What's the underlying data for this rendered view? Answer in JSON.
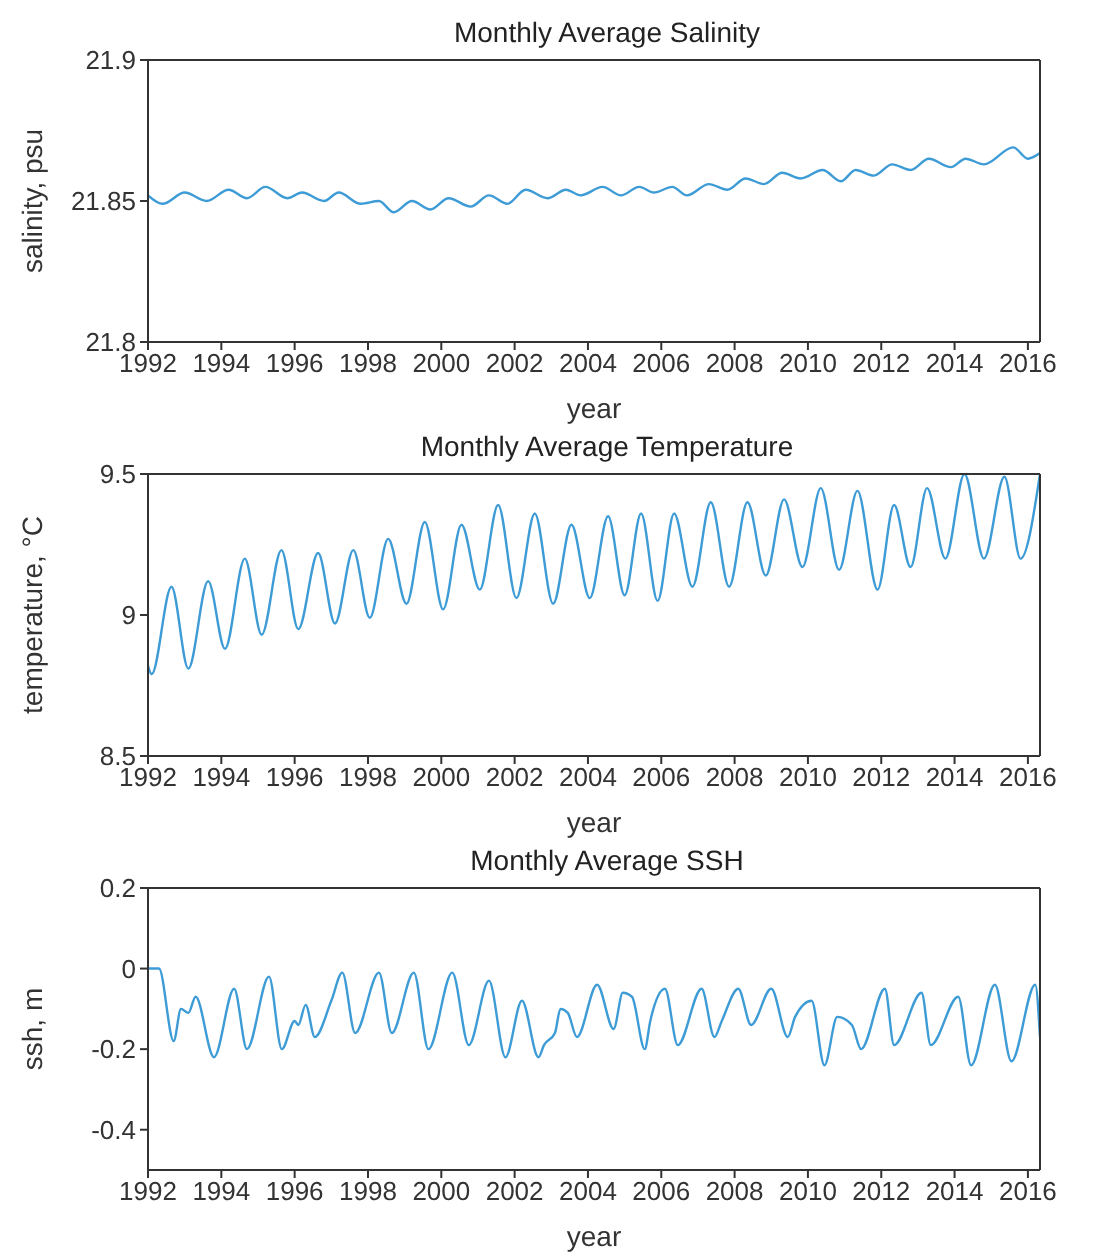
{
  "chart_data": [
    {
      "type": "line",
      "title": "Monthly Average Salinity",
      "xlabel": "year",
      "ylabel": "salinity, psu",
      "xlim": [
        1992,
        2016.33
      ],
      "xticks": [
        1992,
        1994,
        1996,
        1998,
        2000,
        2002,
        2004,
        2006,
        2008,
        2010,
        2012,
        2014,
        2016
      ],
      "ylim": [
        21.8,
        21.9
      ],
      "yticks": [
        21.8,
        21.85,
        21.9
      ],
      "series": [
        {
          "color": "#3d9bd6",
          "x": [
            1992,
            1992.4,
            1993,
            1993.6,
            1994.2,
            1994.7,
            1995.2,
            1995.8,
            1996.2,
            1996.8,
            1997.2,
            1997.8,
            1998.3,
            1998.7,
            1999.2,
            1999.7,
            2000.2,
            2000.8,
            2001.3,
            2001.8,
            2002.3,
            2002.9,
            2003.4,
            2003.8,
            2004.4,
            2004.9,
            2005.4,
            2005.8,
            2006.3,
            2006.7,
            2007.3,
            2007.8,
            2008.3,
            2008.8,
            2009.3,
            2009.8,
            2010.4,
            2010.9,
            2011.3,
            2011.8,
            2012.3,
            2012.8,
            2013.3,
            2013.9,
            2014.3,
            2014.8,
            2015.6,
            2016.0,
            2016.33
          ],
          "values": [
            21.852,
            21.849,
            21.853,
            21.85,
            21.854,
            21.851,
            21.855,
            21.851,
            21.853,
            21.85,
            21.853,
            21.849,
            21.85,
            21.846,
            21.85,
            21.847,
            21.851,
            21.848,
            21.852,
            21.849,
            21.854,
            21.851,
            21.854,
            21.852,
            21.855,
            21.852,
            21.855,
            21.853,
            21.855,
            21.852,
            21.856,
            21.854,
            21.858,
            21.856,
            21.86,
            21.858,
            21.861,
            21.857,
            21.861,
            21.859,
            21.863,
            21.861,
            21.865,
            21.862,
            21.865,
            21.863,
            21.869,
            21.865,
            21.867
          ]
        }
      ]
    },
    {
      "type": "line",
      "title": "Monthly Average Temperature",
      "xlabel": "year",
      "ylabel": "temperature, °C",
      "xlim": [
        1992,
        2016.33
      ],
      "xticks": [
        1992,
        1994,
        1996,
        1998,
        2000,
        2002,
        2004,
        2006,
        2008,
        2010,
        2012,
        2014,
        2016
      ],
      "ylim": [
        8.5,
        9.5
      ],
      "yticks": [
        8.5,
        9,
        9.5
      ],
      "series": [
        {
          "color": "#3d9bd6",
          "x": [
            1992,
            1992.1,
            1992.64,
            1993.1,
            1993.64,
            1994.1,
            1994.64,
            1995.1,
            1995.64,
            1996.1,
            1996.64,
            1997.1,
            1997.6,
            1998.05,
            1998.55,
            1999.05,
            1999.55,
            2000.05,
            2000.55,
            2001.05,
            2001.55,
            2002.05,
            2002.55,
            2003.05,
            2003.55,
            2004.05,
            2004.55,
            2005,
            2005.45,
            2005.9,
            2006.35,
            2006.85,
            2007.35,
            2007.85,
            2008.35,
            2008.85,
            2009.35,
            2009.85,
            2010.35,
            2010.85,
            2011.35,
            2011.9,
            2012.35,
            2012.8,
            2013.25,
            2013.75,
            2014.27,
            2014.8,
            2015.36,
            2015.8,
            2016.33
          ],
          "values": [
            8.82,
            8.79,
            9.1,
            8.81,
            9.12,
            8.88,
            9.2,
            8.93,
            9.23,
            8.95,
            9.22,
            8.97,
            9.23,
            8.99,
            9.27,
            9.04,
            9.33,
            9.02,
            9.32,
            9.09,
            9.39,
            9.06,
            9.36,
            9.04,
            9.32,
            9.06,
            9.35,
            9.07,
            9.36,
            9.05,
            9.36,
            9.1,
            9.4,
            9.1,
            9.4,
            9.14,
            9.41,
            9.17,
            9.45,
            9.16,
            9.44,
            9.09,
            9.39,
            9.17,
            9.45,
            9.2,
            9.5,
            9.2,
            9.49,
            9.2,
            9.5
          ]
        }
      ]
    },
    {
      "type": "line",
      "title": "Monthly Average SSH",
      "xlabel": "year",
      "ylabel": "ssh, m",
      "xlim": [
        1992,
        2016.33
      ],
      "xticks": [
        1992,
        1994,
        1996,
        1998,
        2000,
        2002,
        2004,
        2006,
        2008,
        2010,
        2012,
        2014,
        2016
      ],
      "ylim": [
        -0.5,
        0.2
      ],
      "yticks": [
        -0.4,
        -0.2,
        0,
        0.2
      ],
      "series": [
        {
          "color": "#3d9bd6",
          "x": [
            1992,
            1992.3,
            1992.7,
            1992.9,
            1993.1,
            1993.3,
            1993.8,
            1994.35,
            1994.7,
            1995.3,
            1995.65,
            1996,
            1996.1,
            1996.3,
            1996.55,
            1997,
            1997.3,
            1997.65,
            1998.3,
            1998.65,
            1999.25,
            1999.65,
            2000.3,
            2000.75,
            2001.3,
            2001.75,
            2002.2,
            2002.65,
            2002.8,
            2003.1,
            2003.25,
            2003.45,
            2003.7,
            2004.25,
            2004.7,
            2004.95,
            2005.2,
            2005.55,
            2005.7,
            2006.1,
            2006.45,
            2007.1,
            2007.45,
            2007.65,
            2008.1,
            2008.45,
            2009,
            2009.45,
            2009.65,
            2010.1,
            2010.45,
            2010.8,
            2011.2,
            2011.45,
            2012.1,
            2012.35,
            2013.1,
            2013.35,
            2014.1,
            2014.45,
            2015.1,
            2015.55,
            2016.2,
            2016.33
          ],
          "values": [
            0,
            0,
            -0.18,
            -0.1,
            -0.11,
            -0.07,
            -0.22,
            -0.05,
            -0.2,
            -0.02,
            -0.2,
            -0.13,
            -0.14,
            -0.09,
            -0.17,
            -0.08,
            -0.01,
            -0.16,
            -0.01,
            -0.16,
            -0.01,
            -0.2,
            -0.01,
            -0.19,
            -0.03,
            -0.22,
            -0.08,
            -0.22,
            -0.19,
            -0.16,
            -0.1,
            -0.11,
            -0.17,
            -0.04,
            -0.15,
            -0.06,
            -0.07,
            -0.2,
            -0.13,
            -0.05,
            -0.19,
            -0.05,
            -0.17,
            -0.13,
            -0.05,
            -0.14,
            -0.05,
            -0.17,
            -0.12,
            -0.08,
            -0.24,
            -0.12,
            -0.14,
            -0.2,
            -0.05,
            -0.19,
            -0.06,
            -0.19,
            -0.07,
            -0.24,
            -0.04,
            -0.23,
            -0.04,
            -0.17
          ]
        }
      ]
    }
  ]
}
